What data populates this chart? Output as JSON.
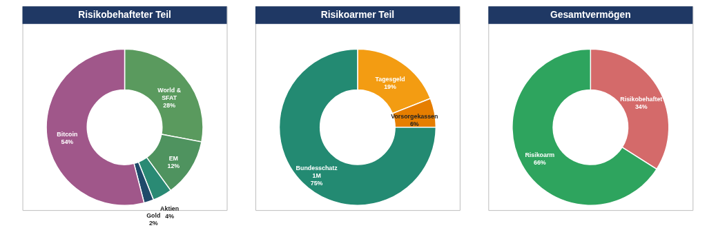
{
  "chart_data": [
    {
      "type": "donut",
      "title": "Risikobehafteter Teil",
      "categories": [
        "World & SFAT",
        "EM",
        "Aktien",
        "Gold",
        "Bitcoin"
      ],
      "values": [
        28,
        12,
        4,
        2,
        54
      ],
      "colors": [
        "#5a9a5e",
        "#4f935f",
        "#2a8a74",
        "#1f4a6a",
        "#a0578a"
      ],
      "value_labels": [
        "28%",
        "12%",
        "4%",
        "2%",
        "54%"
      ],
      "legend": false
    },
    {
      "type": "donut",
      "title": "Risikoarmer Teil",
      "categories": [
        "Tagesgeld",
        "Vorsorgekassen",
        "Bundesschatz 1M"
      ],
      "values": [
        19,
        6,
        75
      ],
      "colors": [
        "#f39c12",
        "#e67e00",
        "#238a72"
      ],
      "value_labels": [
        "19%",
        "6%",
        "75%"
      ],
      "legend": false
    },
    {
      "type": "donut",
      "title": "Gesamtvermögen",
      "categories": [
        "Risikobehaftet",
        "Risikoarm"
      ],
      "values": [
        34,
        66
      ],
      "colors": [
        "#d46a6a",
        "#2ea45e"
      ],
      "value_labels": [
        "34%",
        "66%"
      ],
      "legend": false
    }
  ]
}
